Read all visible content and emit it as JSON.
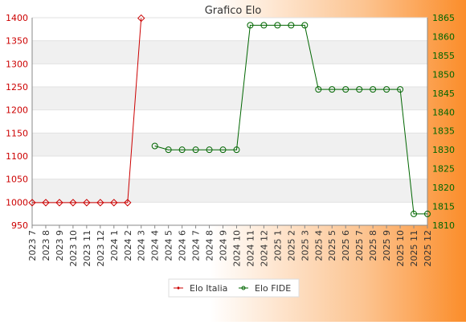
{
  "chart_data": {
    "type": "line",
    "title": "Grafico Elo",
    "categories": [
      "2023 7",
      "2023 8",
      "2023 9",
      "2023 10",
      "2023 11",
      "2023 12",
      "2024 1",
      "2024 2",
      "2024 3",
      "2024 4",
      "2024 5",
      "2024 6",
      "2024 7",
      "2024 8",
      "2024 9",
      "2024 10",
      "2024 11",
      "2024 12",
      "2025 1",
      "2025 2",
      "2025 3",
      "2025 4",
      "2025 5",
      "2025 6",
      "2025 7",
      "2025 8",
      "2025 9",
      "2025 10",
      "2025 11",
      "2025 12"
    ],
    "left_axis": {
      "range": [
        950,
        1400
      ],
      "ticks": [
        "950",
        "1000",
        "1050",
        "1100",
        "1150",
        "1200",
        "1250",
        "1300",
        "1350",
        "1400"
      ],
      "color": "#cc0000"
    },
    "right_axis": {
      "range": [
        1810,
        1865
      ],
      "ticks": [
        "1810",
        "1815",
        "1820",
        "1825",
        "1830",
        "1835",
        "1840",
        "1845",
        "1850",
        "1855",
        "1860",
        "1865"
      ],
      "color": "#006600"
    },
    "series": [
      {
        "name": "Elo Italia",
        "axis": "left",
        "color": "#cc0000",
        "values": [
          999,
          999,
          999,
          999,
          999,
          999,
          999,
          999,
          1399,
          null,
          null,
          null,
          null,
          null,
          null,
          null,
          null,
          null,
          null,
          null,
          null,
          null,
          null,
          null,
          null,
          null,
          null,
          null,
          null,
          null
        ]
      },
      {
        "name": "Elo FIDE",
        "axis": "right",
        "color": "#006600",
        "values": [
          null,
          null,
          null,
          null,
          null,
          null,
          null,
          null,
          null,
          1831,
          1830,
          1830,
          1830,
          1830,
          1830,
          1830,
          1863,
          1863,
          1863,
          1863,
          1863,
          1846,
          1846,
          1846,
          1846,
          1846,
          1846,
          1846,
          1813,
          1813
        ]
      }
    ],
    "grid": "horizontal bands",
    "legend_position": "bottom-center"
  }
}
